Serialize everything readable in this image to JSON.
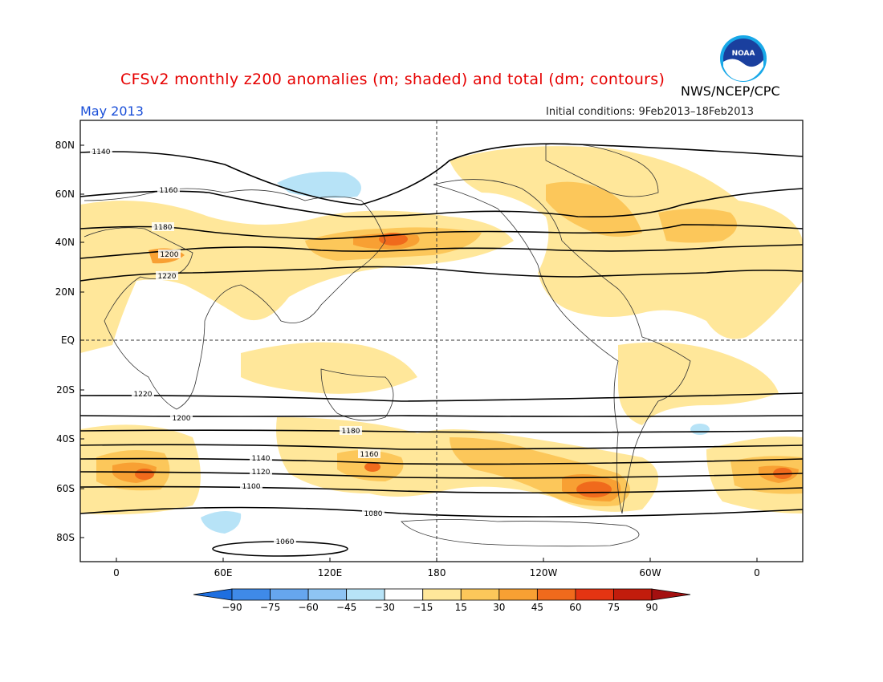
{
  "title": "CFSv2 monthly z200 anomalies (m; shaded) and total (dm; contours)",
  "agency": "NWS/NCEP/CPC",
  "logo_text": "NOAA",
  "month": "May 2013",
  "initial_conditions": "Initial conditions: 9Feb2013–18Feb2013",
  "map": {
    "lat_labels": [
      "80N",
      "60N",
      "40N",
      "20N",
      "EQ",
      "20S",
      "40S",
      "60S",
      "80S"
    ],
    "lon_labels": [
      "0",
      "60E",
      "120E",
      "180",
      "120W",
      "60W",
      "0"
    ]
  },
  "colorbar": {
    "ticks": [
      "-90",
      "-75",
      "-60",
      "-45",
      "-30",
      "-15",
      "15",
      "30",
      "45",
      "60",
      "75",
      "90"
    ],
    "colors": [
      "#1e6fe0",
      "#3f8ae8",
      "#66a6ee",
      "#8ec4f3",
      "#b7e3f7",
      "#ffffff",
      "#ffe79a",
      "#fcc75a",
      "#f8a033",
      "#f06a1c",
      "#e43412",
      "#c21c0c",
      "#a41010"
    ]
  },
  "contours": [
    {
      "label": "1140"
    },
    {
      "label": "1160"
    },
    {
      "label": "1180"
    },
    {
      "label": "1200"
    },
    {
      "label": "1220"
    },
    {
      "label": "1220"
    },
    {
      "label": "1200"
    },
    {
      "label": "1180"
    },
    {
      "label": "1160"
    },
    {
      "label": "1140"
    },
    {
      "label": "1120"
    },
    {
      "label": "1100"
    },
    {
      "label": "1080"
    },
    {
      "label": "1060"
    }
  ]
}
